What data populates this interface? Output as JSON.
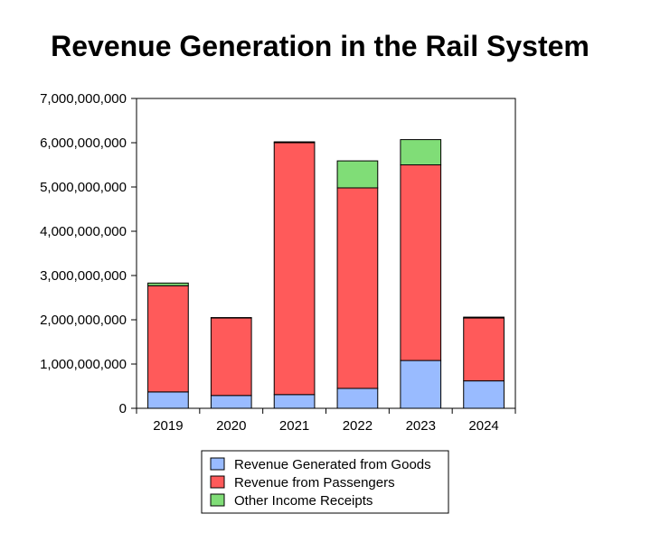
{
  "chart_data": {
    "type": "bar",
    "stacked": true,
    "title": "Revenue Generation in the Rail System",
    "xlabel": "",
    "ylabel": "",
    "categories": [
      "2019",
      "2020",
      "2021",
      "2022",
      "2023",
      "2024"
    ],
    "series": [
      {
        "name": "Revenue Generated from Goods",
        "color": "#99bbff",
        "values": [
          370000000,
          290000000,
          310000000,
          450000000,
          1080000000,
          620000000
        ]
      },
      {
        "name": "Revenue from Passengers",
        "color": "#ff5a5a",
        "values": [
          2400000000,
          1750000000,
          5690000000,
          4530000000,
          4420000000,
          1420000000
        ]
      },
      {
        "name": "Other Income Receipts",
        "color": "#80dd77",
        "values": [
          60000000,
          10000000,
          20000000,
          610000000,
          570000000,
          20000000
        ]
      }
    ],
    "ylim": [
      0,
      7000000000
    ],
    "yticks": [
      {
        "value": 0,
        "label": "0"
      },
      {
        "value": 1000000000,
        "label": "1,000,000,000"
      },
      {
        "value": 2000000000,
        "label": "2,000,000,000"
      },
      {
        "value": 3000000000,
        "label": "3,000,000,000"
      },
      {
        "value": 4000000000,
        "label": "4,000,000,000"
      },
      {
        "value": 5000000000,
        "label": "5,000,000,000"
      },
      {
        "value": 6000000000,
        "label": "6,000,000,000"
      },
      {
        "value": 7000000000,
        "label": "7,000,000,000"
      }
    ],
    "grid": false,
    "legend_position": "bottom"
  }
}
